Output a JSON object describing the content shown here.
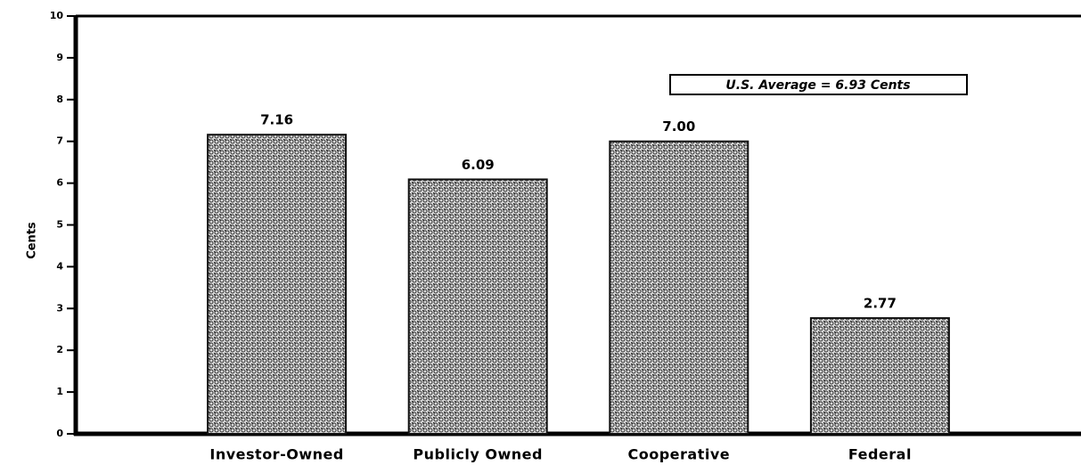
{
  "chart_data": {
    "type": "bar",
    "y_label": "Cents",
    "annotation": "U.S. Average = 6.93 Cents",
    "categories": [
      "Investor-Owned",
      "Publicly Owned",
      "Cooperative",
      "Federal"
    ],
    "values": [
      7.16,
      6.09,
      7.0,
      2.77
    ],
    "value_labels": [
      "7.16",
      "6.09",
      "7.00",
      "2.77"
    ],
    "color": "#9a9a9a",
    "ylim": [
      0,
      10
    ],
    "yticks": [
      0,
      1,
      2,
      3,
      4,
      5,
      6,
      7,
      8,
      9,
      10
    ]
  }
}
